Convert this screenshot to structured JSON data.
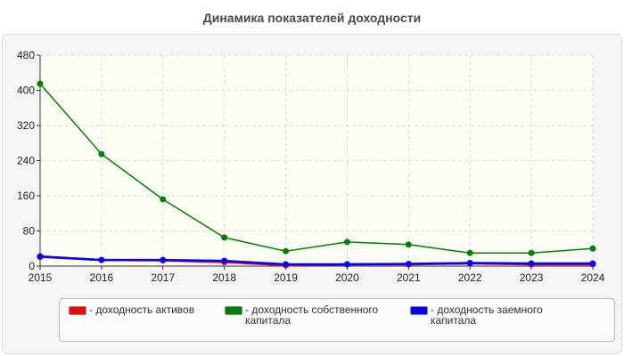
{
  "chart_data": {
    "type": "line",
    "title": "Динамика показателей доходности",
    "x": [
      "2015",
      "2016",
      "2017",
      "2018",
      "2019",
      "2020",
      "2021",
      "2022",
      "2023",
      "2024"
    ],
    "ylim": [
      0,
      480
    ],
    "yticks": [
      "0",
      "80",
      "160",
      "240",
      "320",
      "400",
      "480"
    ],
    "grid": true,
    "legend_position": "bottom",
    "series": [
      {
        "name": "- доходность активов",
        "color": "#ff0000",
        "values": [
          21,
          14,
          13,
          9,
          2,
          4,
          4,
          6,
          4,
          4
        ]
      },
      {
        "name": "- доходность собственного капитала",
        "color": "#008000",
        "values": [
          415,
          255,
          152,
          65,
          34,
          55,
          49,
          30,
          30,
          40
        ]
      },
      {
        "name": "- доходность заемного капитала",
        "color": "#0000ff",
        "values": [
          22,
          14,
          14,
          12,
          4,
          4,
          5,
          7,
          6,
          6
        ]
      }
    ]
  }
}
